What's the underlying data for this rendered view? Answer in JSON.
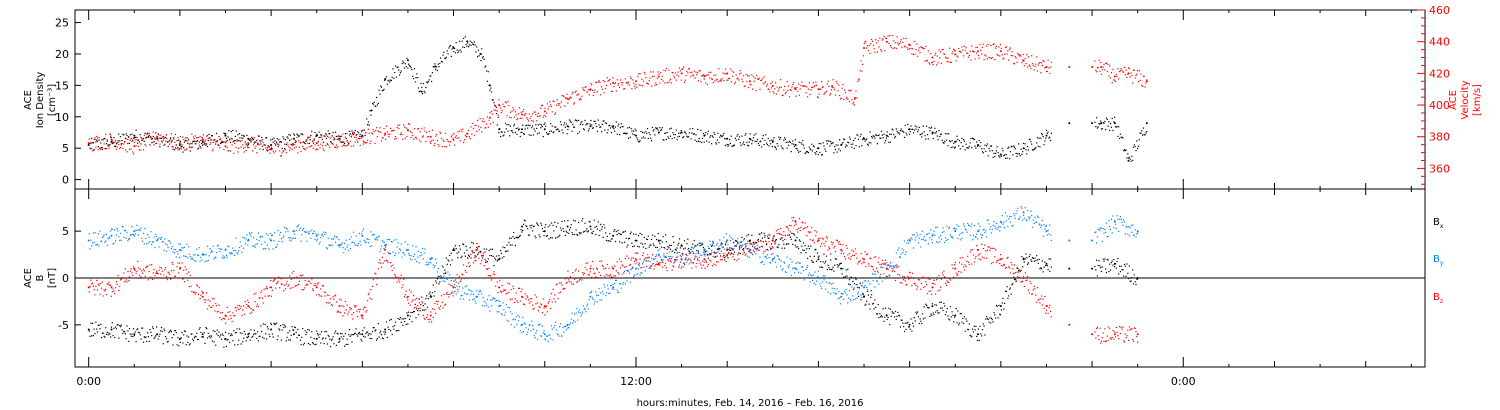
{
  "chart_data": [
    {
      "type": "scatter",
      "panel": "top",
      "left_axis": {
        "label_lines": [
          "ACE",
          "Ion Density",
          "[cm⁻³]"
        ],
        "ticks": [
          0,
          5,
          10,
          15,
          20,
          25
        ],
        "ylim": [
          -1.5,
          27
        ]
      },
      "right_axis": {
        "label_lines": [
          "ACE",
          "Velocity",
          "[km/s]"
        ],
        "ticks": [
          360,
          380,
          400,
          420,
          440,
          460
        ],
        "ylim": [
          347,
          460
        ],
        "color": "#ff0000"
      },
      "series": [
        {
          "color": "#000000",
          "axis": "left",
          "x": [
            0,
            0.5,
            1,
            1.5,
            2,
            2.5,
            3,
            3.5,
            4,
            4.5,
            5,
            5.5,
            6,
            6.2,
            6.5,
            7,
            7.3,
            7.6,
            8,
            8.3,
            8.6,
            8.8,
            9,
            9.5,
            10,
            10.5,
            11,
            11.5,
            12,
            12.5,
            13,
            13.5,
            14,
            14.5,
            15,
            15.5,
            16,
            16.5,
            17,
            17.5,
            18,
            18.5,
            19,
            19.5,
            20,
            20.5,
            21,
            21.5,
            22,
            22.2,
            22.5,
            22.8,
            23.2
          ],
          "y": [
            5.5,
            6,
            7,
            6.5,
            5.5,
            6,
            7,
            6.5,
            5.5,
            6.5,
            7,
            6.5,
            7,
            11,
            16,
            19,
            14,
            18,
            21,
            22,
            20,
            15,
            8,
            8,
            8,
            8.5,
            8.5,
            8.5,
            7,
            7.5,
            7.5,
            7,
            6.5,
            6.5,
            6,
            5.5,
            5,
            5.5,
            6.5,
            7,
            8,
            7.5,
            6,
            5.5,
            4,
            5,
            7,
            9,
            9,
            9,
            9,
            3,
            9
          ]
        },
        {
          "color": "#ff0000",
          "axis": "right",
          "x": [
            0,
            0.5,
            1,
            1.5,
            2,
            2.5,
            3,
            3.5,
            4,
            4.5,
            5,
            5.5,
            6,
            6.5,
            7,
            7.5,
            8,
            8.3,
            8.8,
            9,
            9.5,
            10,
            10.5,
            11,
            11.5,
            12,
            12.5,
            13,
            13.5,
            14,
            14.5,
            15,
            15.5,
            16,
            16.3,
            16.8,
            17,
            17.5,
            18,
            18.5,
            19,
            19.5,
            20,
            20.5,
            21,
            21.5,
            22,
            22.2,
            22.5,
            22.8,
            23.2
          ],
          "y": [
            376,
            378,
            374,
            380,
            376,
            378,
            374,
            376,
            372,
            375,
            376,
            378,
            380,
            382,
            384,
            380,
            378,
            382,
            392,
            400,
            394,
            396,
            404,
            410,
            414,
            415,
            418,
            420,
            418,
            420,
            415,
            412,
            410,
            410,
            412,
            404,
            436,
            440,
            438,
            430,
            432,
            434,
            434,
            428,
            424,
            424,
            424,
            424,
            418,
            420,
            415
          ]
        }
      ],
      "y_zero_line": false
    },
    {
      "type": "scatter",
      "panel": "bottom",
      "left_axis": {
        "label_lines": [
          "ACE",
          "B",
          "[nT]"
        ],
        "ticks": [
          -5,
          0,
          5
        ],
        "ylim": [
          -9.5,
          9.5
        ]
      },
      "legend_position": "right",
      "series": [
        {
          "name": "Bx",
          "color": "#000000",
          "x": [
            0,
            0.5,
            1,
            1.5,
            2,
            2.5,
            3,
            3.5,
            4,
            4.5,
            5,
            5.5,
            6,
            6.5,
            7,
            7.5,
            8,
            8.5,
            9,
            9.5,
            10,
            10.5,
            11,
            11.5,
            12,
            12.5,
            13,
            13.5,
            14,
            14.5,
            15,
            15.5,
            16,
            16.5,
            17,
            17.5,
            18,
            18.5,
            19,
            19.5,
            20,
            20.5,
            21,
            21.5,
            22,
            22.5,
            23
          ],
          "y": [
            -5.5,
            -5.5,
            -6,
            -6,
            -6.5,
            -6,
            -6.5,
            -6,
            -5.5,
            -6,
            -6.5,
            -6.5,
            -6,
            -5.5,
            -4,
            -2,
            3,
            3,
            2,
            5.5,
            5,
            5.5,
            5.5,
            4.5,
            4,
            4,
            3.5,
            3,
            3,
            4,
            4,
            4,
            2,
            1,
            -2,
            -4,
            -5,
            -3,
            -4,
            -6,
            -3,
            2,
            1.5,
            1,
            1,
            1.5,
            0
          ]
        },
        {
          "name": "By",
          "color": "#0080ff",
          "x": [
            0,
            0.5,
            1,
            1.5,
            2,
            2.5,
            3,
            3.5,
            4,
            4.5,
            5,
            5.5,
            6,
            6.5,
            7,
            7.5,
            8,
            8.5,
            9,
            9.5,
            10,
            10.5,
            11,
            11.5,
            12,
            12.5,
            13,
            13.5,
            14,
            14.5,
            15,
            15.5,
            16,
            16.5,
            17,
            17.5,
            18,
            18.5,
            19,
            19.5,
            20,
            20.5,
            21,
            21.5,
            22,
            22.5,
            23
          ],
          "y": [
            4,
            4.5,
            5,
            4,
            3,
            2.5,
            3,
            4,
            4,
            5,
            4.5,
            3.5,
            4.5,
            3.5,
            3,
            2,
            -1,
            -2,
            -3,
            -5,
            -6,
            -5,
            -2,
            -1,
            1,
            2.5,
            2,
            3,
            4,
            3,
            2,
            1,
            0,
            -2,
            -1,
            1,
            4,
            4.5,
            5,
            5,
            6,
            7,
            5,
            4,
            4,
            6,
            5
          ]
        },
        {
          "name": "Bz",
          "color": "#ff0000",
          "x": [
            0,
            0.5,
            1,
            1.5,
            2,
            2.5,
            3,
            3.5,
            4,
            4.5,
            5,
            5.5,
            6,
            6.5,
            7,
            7.5,
            8,
            8.5,
            9,
            9.5,
            10,
            10.5,
            11,
            11.5,
            12,
            12.5,
            13,
            13.5,
            14,
            14.5,
            15,
            15.5,
            16,
            16.5,
            17,
            17.5,
            18,
            18.5,
            19,
            19.5,
            20,
            20.5,
            21,
            21.5,
            22,
            22.5,
            23
          ],
          "y": [
            -1,
            -1,
            1,
            0.5,
            1,
            -2,
            -4,
            -3,
            -1,
            0,
            -1,
            -3,
            -4,
            3,
            -2,
            -4,
            -1,
            3,
            -1,
            -2,
            -3,
            0,
            1,
            1,
            2,
            1.5,
            2,
            2,
            2.5,
            3,
            4,
            6,
            4,
            3,
            2,
            1,
            0,
            -1,
            1,
            3,
            2,
            0,
            -3,
            -5,
            -6,
            -6,
            -6
          ]
        }
      ],
      "y_zero_line": true
    }
  ],
  "legend": {
    "bx": "B",
    "bx_sub": "x",
    "by": "B",
    "by_sub": "y",
    "bz": "B",
    "bz_sub": "z"
  },
  "x_axis": {
    "tick_labels": [
      "0:00",
      "12:00",
      "0:00"
    ],
    "tick_hours": [
      0,
      12,
      24
    ],
    "xlim_hours": [
      -0.3,
      29.3
    ],
    "caption": "hours:minutes, Feb. 14, 2016 – Feb. 16, 2016"
  }
}
